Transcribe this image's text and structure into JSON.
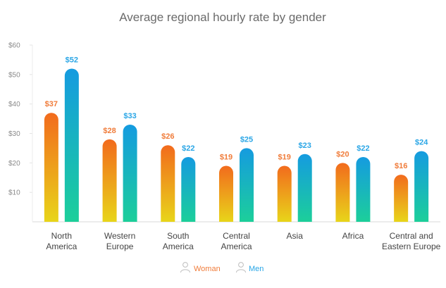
{
  "chart_data": {
    "type": "bar",
    "title": "Average regional hourly rate by gender",
    "xlabel": "",
    "ylabel": "",
    "ylim": [
      0,
      60
    ],
    "yticks": [
      10,
      20,
      30,
      40,
      50,
      60
    ],
    "ytick_labels": [
      "$10",
      "$20",
      "$30",
      "$40",
      "$50",
      "$60"
    ],
    "categories": [
      [
        "North",
        "America"
      ],
      [
        "Western",
        "Europe"
      ],
      [
        "South",
        "America"
      ],
      [
        "Central",
        "America"
      ],
      [
        "Asia"
      ],
      [
        "Africa"
      ],
      [
        "Central and",
        "Eastern Europe"
      ]
    ],
    "series": [
      {
        "name": "Woman",
        "values": [
          37,
          28,
          26,
          19,
          19,
          20,
          16
        ],
        "labels": [
          "$37",
          "$28",
          "$26",
          "$19",
          "$19",
          "$20",
          "$16"
        ],
        "color_top": "#f26b1d",
        "color_bottom": "#e8d51a",
        "label_color": "#f07c3a"
      },
      {
        "name": "Men",
        "values": [
          52,
          33,
          22,
          25,
          23,
          22,
          24
        ],
        "labels": [
          "$52",
          "$33",
          "$22",
          "$25",
          "$23",
          "$22",
          "$24"
        ],
        "color_top": "#159be0",
        "color_bottom": "#1ccf9a",
        "label_color": "#2aa6e6"
      }
    ],
    "legend": {
      "position": "bottom-center",
      "items": [
        "Woman",
        "Men"
      ]
    },
    "grid": false
  }
}
